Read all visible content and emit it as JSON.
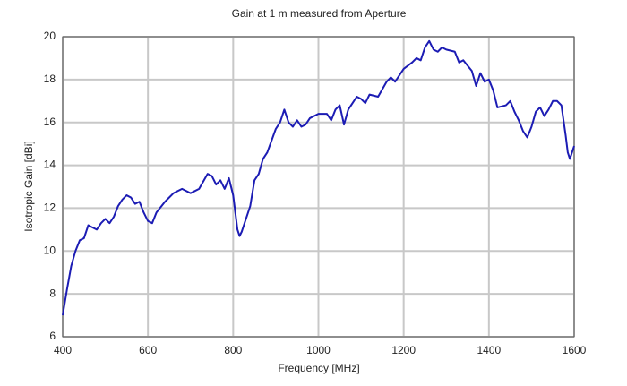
{
  "chart_data": {
    "type": "line",
    "title": "Gain at 1 m measured from Aperture",
    "xlabel": "Frequency [MHz]",
    "ylabel": "Isotropic Gain [dBi]",
    "xlim": [
      400,
      1600
    ],
    "xticks": [
      400,
      600,
      800,
      1000,
      1200,
      1400,
      1600
    ],
    "ylim": [
      6,
      20
    ],
    "yticks": [
      6,
      8,
      10,
      12,
      14,
      16,
      18,
      20
    ],
    "grid": true,
    "x": [
      400,
      410,
      420,
      430,
      440,
      450,
      460,
      470,
      480,
      490,
      500,
      510,
      520,
      530,
      540,
      550,
      560,
      570,
      580,
      590,
      600,
      610,
      620,
      640,
      660,
      670,
      680,
      700,
      720,
      740,
      750,
      760,
      770,
      780,
      790,
      800,
      810,
      815,
      820,
      840,
      850,
      860,
      870,
      880,
      900,
      910,
      920,
      930,
      940,
      950,
      960,
      970,
      980,
      1000,
      1020,
      1030,
      1040,
      1050,
      1060,
      1070,
      1080,
      1090,
      1100,
      1110,
      1120,
      1140,
      1160,
      1170,
      1180,
      1200,
      1220,
      1230,
      1240,
      1250,
      1260,
      1270,
      1280,
      1290,
      1300,
      1320,
      1330,
      1340,
      1360,
      1370,
      1380,
      1390,
      1400,
      1410,
      1420,
      1440,
      1450,
      1460,
      1470,
      1480,
      1490,
      1500,
      1510,
      1520,
      1530,
      1540,
      1550,
      1560,
      1570,
      1580,
      1585,
      1590,
      1600
    ],
    "series": [
      {
        "color": "#1c1cb4",
        "values": [
          7.0,
          8.2,
          9.3,
          10.0,
          10.5,
          10.6,
          11.2,
          11.1,
          11.0,
          11.3,
          11.5,
          11.3,
          11.6,
          12.1,
          12.4,
          12.6,
          12.5,
          12.2,
          12.3,
          11.8,
          11.4,
          11.3,
          11.8,
          12.3,
          12.7,
          12.8,
          12.9,
          12.7,
          12.9,
          13.6,
          13.5,
          13.1,
          13.3,
          12.9,
          13.4,
          12.6,
          11.0,
          10.7,
          10.9,
          12.1,
          13.3,
          13.6,
          14.3,
          14.6,
          15.7,
          16.0,
          16.6,
          16.0,
          15.8,
          16.1,
          15.8,
          15.9,
          16.2,
          16.4,
          16.4,
          16.1,
          16.6,
          16.8,
          15.9,
          16.6,
          16.9,
          17.2,
          17.1,
          16.9,
          17.3,
          17.2,
          17.9,
          18.1,
          17.9,
          18.5,
          18.8,
          19.0,
          18.9,
          19.5,
          19.8,
          19.4,
          19.3,
          19.5,
          19.4,
          19.3,
          18.8,
          18.9,
          18.4,
          17.7,
          18.3,
          17.9,
          18.0,
          17.5,
          16.7,
          16.8,
          17.0,
          16.5,
          16.1,
          15.6,
          15.3,
          15.8,
          16.5,
          16.7,
          16.3,
          16.6,
          17.0,
          17.0,
          16.8,
          15.4,
          14.6,
          14.3,
          14.9
        ]
      }
    ]
  }
}
